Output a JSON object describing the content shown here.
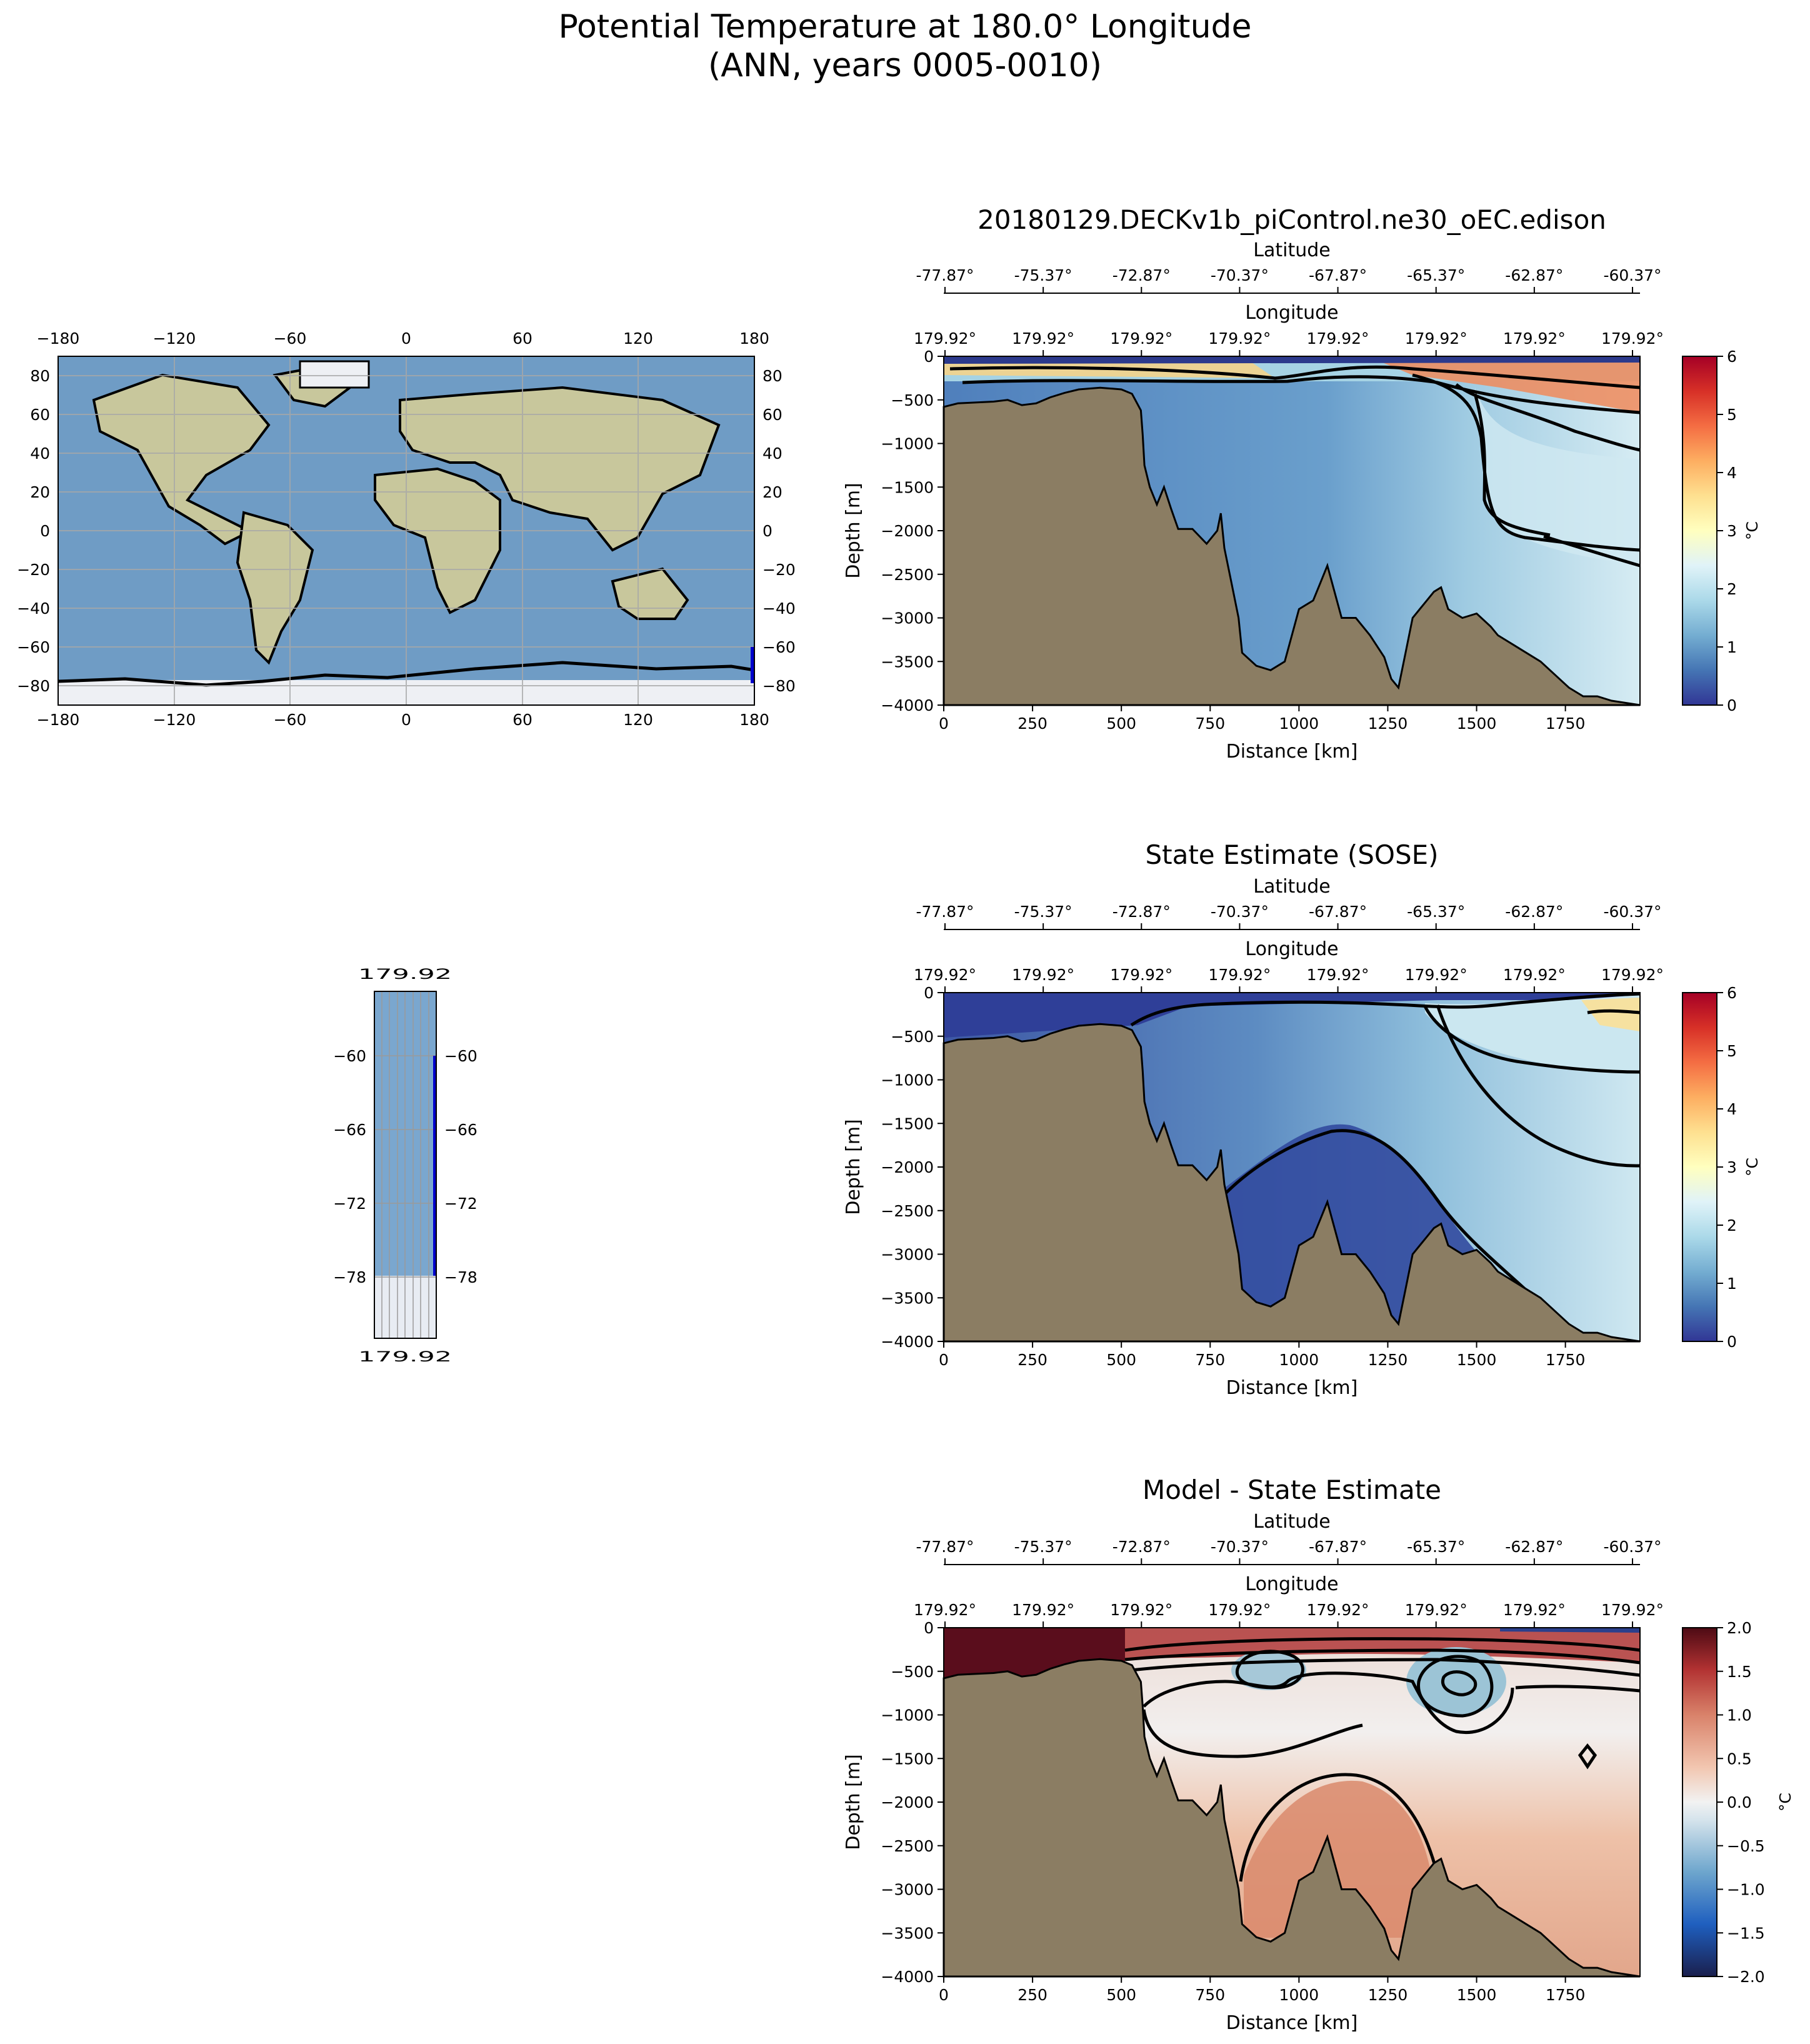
{
  "figure": {
    "title_line1": "Potential Temperature at 180.0° Longitude",
    "title_line2": "(ANN, years 0005-0010)"
  },
  "map": {
    "lon_ticks": [
      "−180",
      "−120",
      "−60",
      "0",
      "60",
      "120",
      "180"
    ],
    "lat_ticks": [
      "80",
      "60",
      "40",
      "20",
      "0",
      "−20",
      "−40",
      "−60",
      "−80"
    ],
    "ocean_color": "#6f9cc5",
    "land_color": "#c9c9a0",
    "ice_color": "#eef0f4",
    "coast_color": "#000000",
    "section_line_color": "#0000cc"
  },
  "inset": {
    "lat_ticks": [
      "−60",
      "−66",
      "−72",
      "−78"
    ],
    "lon_tick_label": "179.92"
  },
  "section_axes": {
    "latitude_label": "Latitude",
    "longitude_label": "Longitude",
    "lat_ticks": [
      "-77.87°",
      "-75.37°",
      "-72.87°",
      "-70.37°",
      "-67.87°",
      "-65.37°",
      "-62.87°",
      "-60.37°"
    ],
    "lon_ticks": [
      "179.92°",
      "179.92°",
      "179.92°",
      "179.92°",
      "179.92°",
      "179.92°",
      "179.92°",
      "179.92°"
    ],
    "xlabel": "Distance [km]",
    "ylabel": "Depth [m]",
    "x_ticks": [
      "0",
      "250",
      "500",
      "750",
      "1000",
      "1250",
      "1500",
      "1750"
    ],
    "y_ticks": [
      "0",
      "−500",
      "−1000",
      "−1500",
      "−2000",
      "−2500",
      "−3000",
      "−3500",
      "−4000"
    ],
    "bathymetry_color": "#8b7d63"
  },
  "chart_data": [
    {
      "type": "heatmap",
      "title": "20180129.DECKv1b_piControl.ne30_oEC.edison",
      "xlabel": "Distance [km]",
      "ylabel": "Depth [m]",
      "xlim": [
        0,
        1960
      ],
      "ylim": [
        -4000,
        0
      ],
      "colorbar": {
        "label": "°C",
        "min": 0,
        "max": 6,
        "ticks": [
          "0",
          "1",
          "2",
          "3",
          "4",
          "5",
          "6"
        ],
        "colormap": "RdYlBu_r"
      }
    },
    {
      "type": "heatmap",
      "title": "State Estimate (SOSE)",
      "xlabel": "Distance [km]",
      "ylabel": "Depth [m]",
      "xlim": [
        0,
        1960
      ],
      "ylim": [
        -4000,
        0
      ],
      "colorbar": {
        "label": "°C",
        "min": 0,
        "max": 6,
        "ticks": [
          "0",
          "1",
          "2",
          "3",
          "4",
          "5",
          "6"
        ],
        "colormap": "RdYlBu_r"
      }
    },
    {
      "type": "heatmap",
      "title": "Model - State Estimate",
      "xlabel": "Distance [km]",
      "ylabel": "Depth [m]",
      "xlim": [
        0,
        1960
      ],
      "ylim": [
        -4000,
        0
      ],
      "colorbar": {
        "label": "°C",
        "min": -2.0,
        "max": 2.0,
        "ticks": [
          "2.0",
          "1.5",
          "1.0",
          "0.5",
          "0.0",
          "−0.5",
          "−1.0",
          "−1.5",
          "−2.0"
        ],
        "colormap": "RdBu_r"
      }
    }
  ],
  "bathymetry_profile_km_m": [
    [
      0,
      -580
    ],
    [
      20,
      -560
    ],
    [
      40,
      -540
    ],
    [
      140,
      -520
    ],
    [
      180,
      -500
    ],
    [
      220,
      -560
    ],
    [
      260,
      -540
    ],
    [
      300,
      -470
    ],
    [
      340,
      -420
    ],
    [
      380,
      -380
    ],
    [
      440,
      -360
    ],
    [
      500,
      -380
    ],
    [
      530,
      -430
    ],
    [
      555,
      -620
    ],
    [
      560,
      -900
    ],
    [
      565,
      -1250
    ],
    [
      580,
      -1500
    ],
    [
      600,
      -1700
    ],
    [
      620,
      -1500
    ],
    [
      640,
      -1750
    ],
    [
      660,
      -1980
    ],
    [
      700,
      -1980
    ],
    [
      740,
      -2150
    ],
    [
      770,
      -2000
    ],
    [
      780,
      -1800
    ],
    [
      790,
      -2200
    ],
    [
      810,
      -2600
    ],
    [
      830,
      -3000
    ],
    [
      840,
      -3400
    ],
    [
      880,
      -3550
    ],
    [
      920,
      -3600
    ],
    [
      960,
      -3500
    ],
    [
      980,
      -3200
    ],
    [
      1000,
      -2900
    ],
    [
      1040,
      -2800
    ],
    [
      1060,
      -2600
    ],
    [
      1080,
      -2400
    ],
    [
      1100,
      -2700
    ],
    [
      1120,
      -3000
    ],
    [
      1160,
      -3000
    ],
    [
      1200,
      -3200
    ],
    [
      1240,
      -3450
    ],
    [
      1260,
      -3700
    ],
    [
      1280,
      -3800
    ],
    [
      1300,
      -3400
    ],
    [
      1320,
      -3000
    ],
    [
      1340,
      -2900
    ],
    [
      1360,
      -2800
    ],
    [
      1380,
      -2700
    ],
    [
      1400,
      -2650
    ],
    [
      1420,
      -2900
    ],
    [
      1460,
      -3000
    ],
    [
      1500,
      -2950
    ],
    [
      1540,
      -3100
    ],
    [
      1560,
      -3200
    ],
    [
      1600,
      -3300
    ],
    [
      1640,
      -3400
    ],
    [
      1680,
      -3500
    ],
    [
      1720,
      -3650
    ],
    [
      1760,
      -3800
    ],
    [
      1800,
      -3900
    ],
    [
      1840,
      -3900
    ],
    [
      1880,
      -3950
    ],
    [
      1960,
      -4000
    ]
  ]
}
